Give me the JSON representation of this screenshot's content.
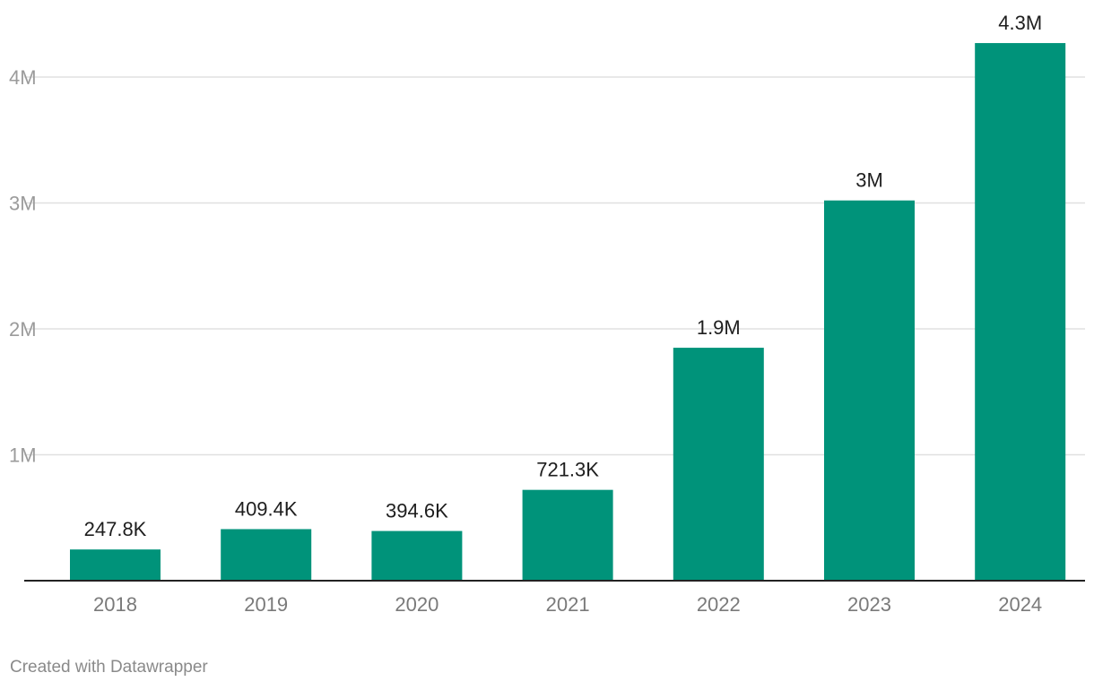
{
  "chart_data": {
    "type": "bar",
    "title": "",
    "xlabel": "",
    "ylabel": "",
    "categories": [
      "2018",
      "2019",
      "2020",
      "2021",
      "2022",
      "2023",
      "2024"
    ],
    "values": [
      247800,
      409400,
      394600,
      721300,
      1850000,
      3020000,
      4270000
    ],
    "data_labels": [
      "247.8K",
      "409.4K",
      "394.6K",
      "721.3K",
      "1.9M",
      "3M",
      "4.3M"
    ],
    "y_ticks": [
      1000000,
      2000000,
      3000000,
      4000000
    ],
    "y_tick_labels": [
      "1M",
      "2M",
      "3M",
      "4M"
    ],
    "ylim": [
      0,
      4300000
    ],
    "grid": true,
    "bar_color": "#00937a",
    "legend": "none"
  },
  "footer": {
    "credit": "Created with Datawrapper"
  }
}
